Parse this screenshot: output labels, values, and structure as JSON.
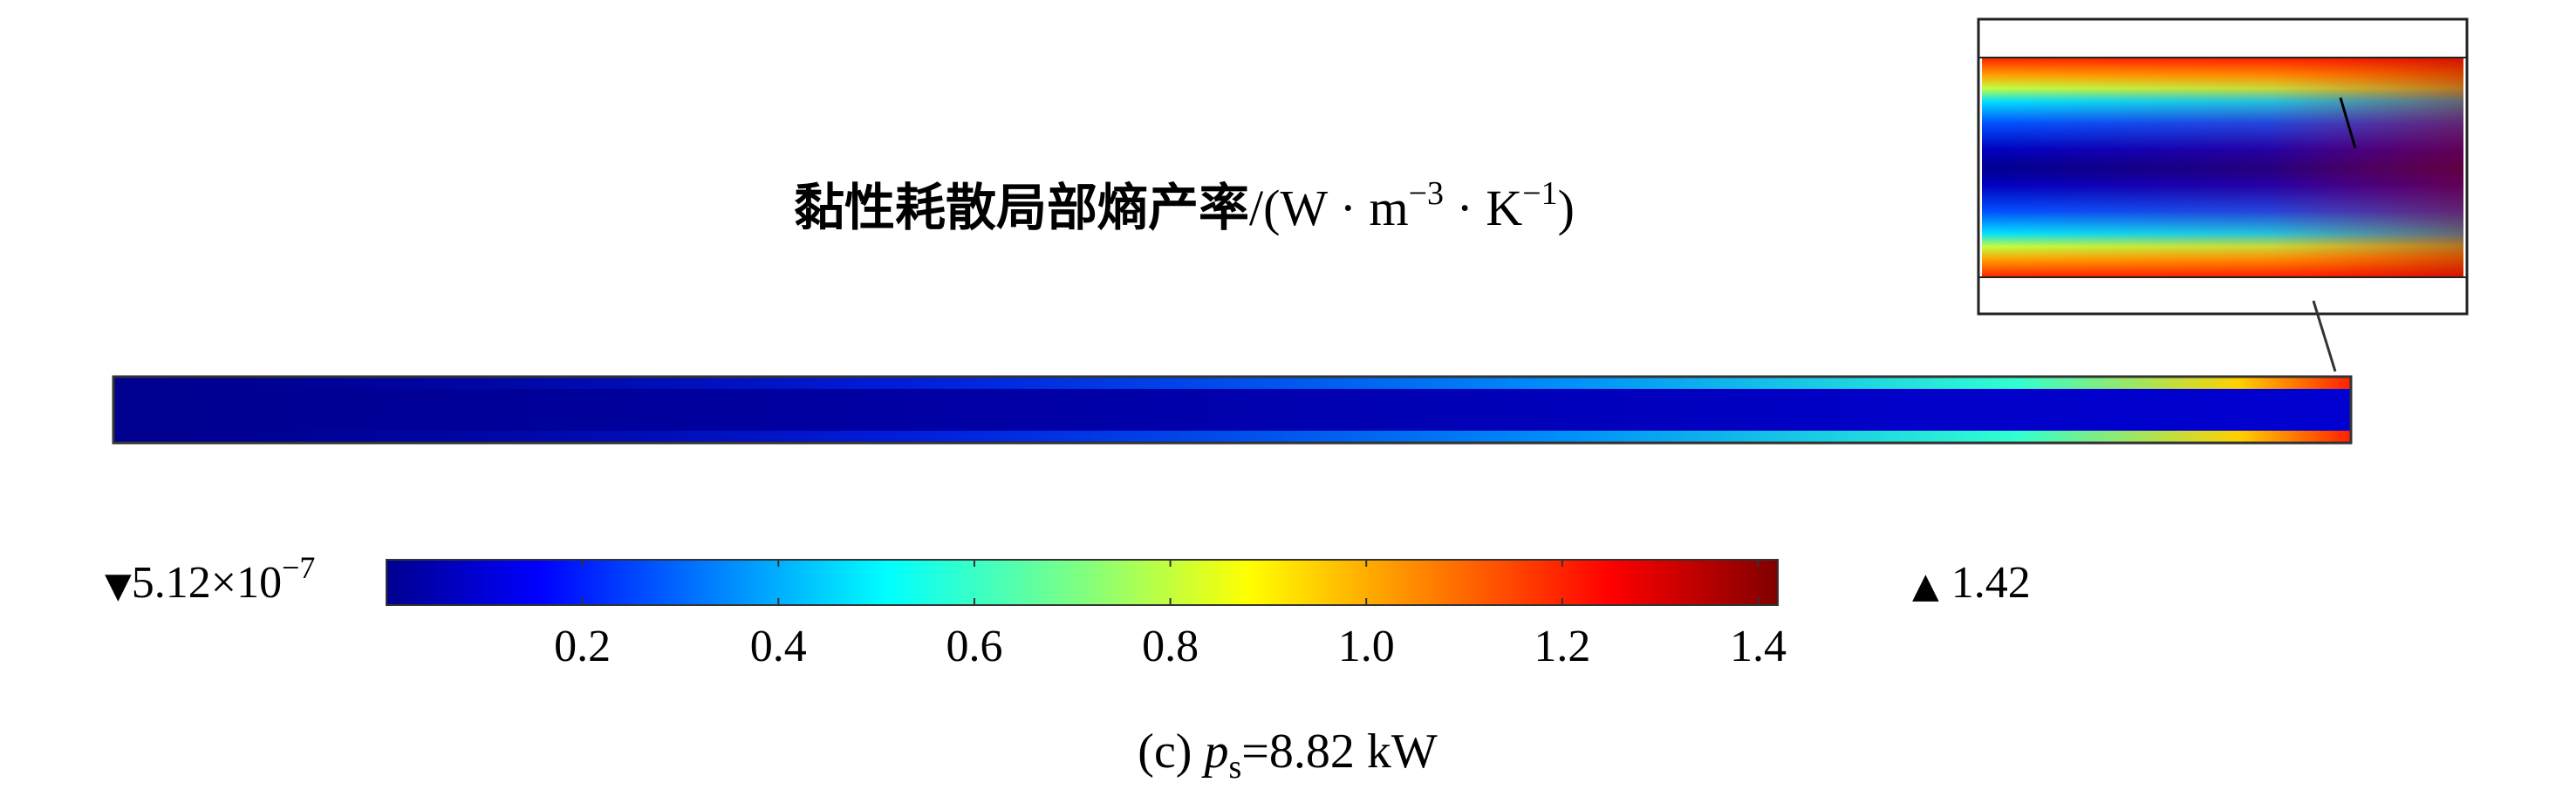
{
  "chart_data": {
    "type": "heatmap",
    "title": {
      "main": "黏性耗散局部熵产率",
      "unit_prefix": "/(W · m",
      "unit_exp1": "−3",
      "unit_mid": " · K",
      "unit_exp2": "−1",
      "unit_suffix": ")"
    },
    "colorbar": {
      "min": 0,
      "max": 1.42,
      "ticks": [
        0.2,
        0.4,
        0.6,
        0.8,
        1.0,
        1.2,
        1.4
      ],
      "tick_labels": [
        "0.2",
        "0.4",
        "0.6",
        "0.8",
        "1.0",
        "1.2",
        "1.4"
      ],
      "colormap": "jet",
      "colors": [
        "#00008F",
        "#0000FF",
        "#00FFFF",
        "#80FF80",
        "#FFFF00",
        "#FF8000",
        "#FF0000",
        "#800000"
      ]
    },
    "min_marker": {
      "symbol": "▼",
      "mantissa": "5.12×10",
      "exponent": "−7"
    },
    "max_marker": {
      "symbol": "▲",
      "value": "1.42"
    },
    "caption": {
      "prefix": "(c) ",
      "var": "p",
      "sub": "s",
      "suffix": "=8.82 kW"
    }
  }
}
